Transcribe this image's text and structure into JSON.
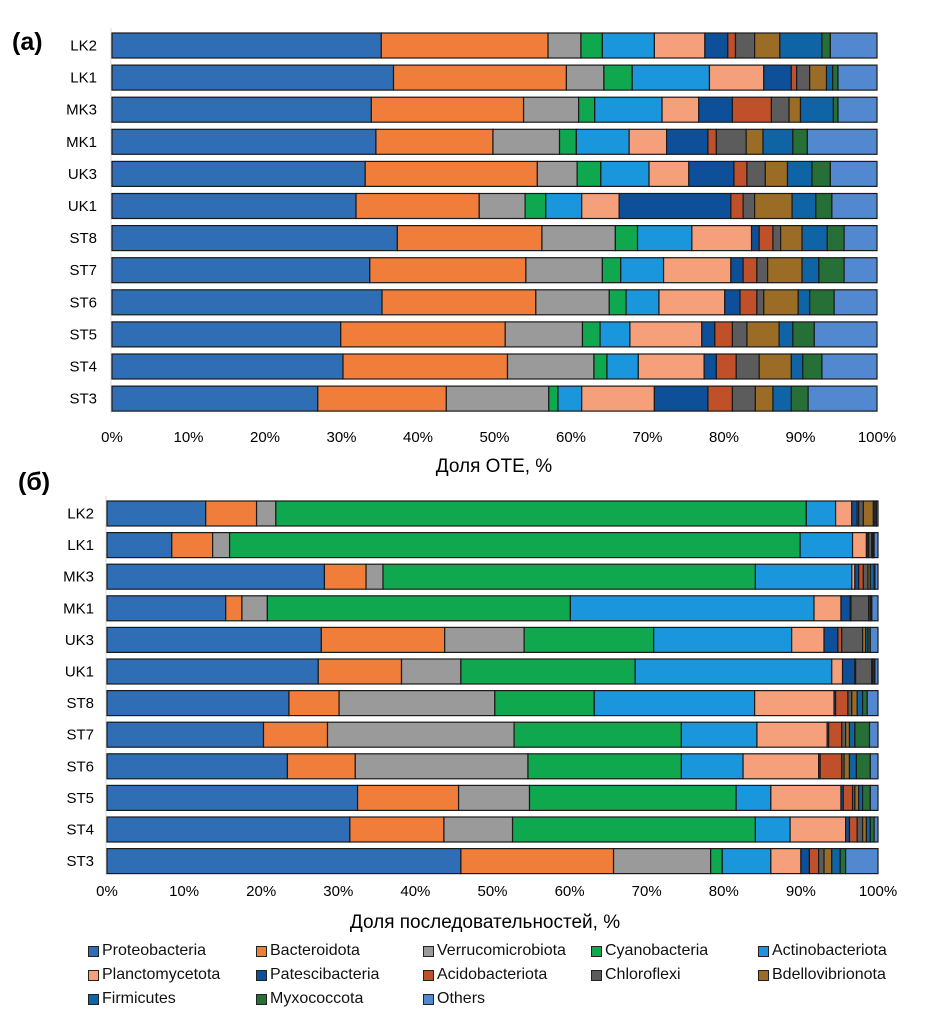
{
  "chart_data": [
    {
      "id": "a",
      "type": "bar",
      "orientation": "horizontal",
      "stacked": "percent",
      "panel_label": "(a)",
      "title": "",
      "xlabel": "Доля ОТЕ, %",
      "ylabel": "",
      "xlim": [
        0,
        100
      ],
      "xticks": [
        "0%",
        "10%",
        "20%",
        "30%",
        "40%",
        "50%",
        "60%",
        "70%",
        "80%",
        "90%",
        "100%"
      ],
      "categories": [
        "LK2",
        "LK1",
        "MK3",
        "MK1",
        "UK3",
        "UK1",
        "ST8",
        "ST7",
        "ST6",
        "ST5",
        "ST4",
        "ST3"
      ],
      "cumulative": [
        [
          35.2,
          57.0,
          61.3,
          64.1,
          70.9,
          77.5,
          80.5,
          81.5,
          84.0,
          87.3,
          92.8,
          93.9,
          100
        ],
        [
          36.8,
          59.4,
          64.3,
          68.0,
          78.1,
          85.2,
          88.8,
          89.5,
          91.2,
          93.4,
          94.2,
          94.9,
          100
        ],
        [
          33.9,
          53.8,
          61.0,
          63.1,
          71.9,
          76.7,
          81.1,
          86.2,
          88.5,
          90.0,
          94.3,
          94.9,
          100
        ],
        [
          34.5,
          49.8,
          58.5,
          60.7,
          67.6,
          72.5,
          77.9,
          79.0,
          82.9,
          85.1,
          89.0,
          90.9,
          100
        ],
        [
          33.1,
          55.6,
          60.8,
          63.9,
          70.2,
          75.4,
          81.3,
          83.0,
          85.4,
          88.3,
          91.5,
          93.9,
          100
        ],
        [
          31.9,
          48.0,
          54.0,
          56.7,
          61.4,
          66.3,
          80.9,
          82.5,
          84.0,
          88.9,
          92.0,
          94.1,
          100
        ],
        [
          37.3,
          56.2,
          65.8,
          68.7,
          75.8,
          83.6,
          84.6,
          86.4,
          87.4,
          90.2,
          93.5,
          95.7,
          100
        ],
        [
          33.7,
          54.1,
          64.1,
          66.5,
          72.1,
          80.9,
          82.5,
          84.3,
          85.7,
          90.2,
          92.4,
          95.7,
          100
        ],
        [
          35.3,
          55.4,
          65.0,
          67.2,
          71.5,
          80.1,
          82.1,
          84.3,
          85.2,
          89.7,
          91.2,
          94.4,
          100
        ],
        [
          29.9,
          51.4,
          61.5,
          63.8,
          67.7,
          77.1,
          78.8,
          81.1,
          83.0,
          87.2,
          89.0,
          91.8,
          100
        ],
        [
          30.2,
          51.7,
          63.0,
          64.7,
          68.8,
          77.4,
          79.0,
          81.6,
          84.6,
          88.8,
          90.3,
          92.8,
          100
        ],
        [
          26.9,
          43.7,
          57.1,
          58.3,
          61.4,
          70.9,
          77.9,
          81.1,
          84.1,
          86.4,
          88.8,
          91.0,
          100
        ]
      ],
      "grid": false
    },
    {
      "id": "b",
      "type": "bar",
      "orientation": "horizontal",
      "stacked": "percent",
      "panel_label": "(б)",
      "title": "",
      "xlabel": "Доля последовательностей, %",
      "ylabel": "",
      "xlim": [
        0,
        100
      ],
      "xticks": [
        "0%",
        "10%",
        "20%",
        "30%",
        "40%",
        "50%",
        "60%",
        "70%",
        "80%",
        "90%",
        "100%"
      ],
      "categories": [
        "LK2",
        "LK1",
        "MK3",
        "MK1",
        "UK3",
        "UK1",
        "ST8",
        "ST7",
        "ST6",
        "ST5",
        "ST4",
        "ST3"
      ],
      "cumulative": [
        [
          12.8,
          19.4,
          21.9,
          90.7,
          94.5,
          96.6,
          97.3,
          97.5,
          98.1,
          99.4,
          99.6,
          99.8,
          100
        ],
        [
          8.4,
          13.7,
          15.9,
          89.9,
          96.7,
          98.5,
          98.7,
          98.8,
          99.2,
          99.3,
          99.4,
          99.5,
          100
        ],
        [
          28.2,
          33.6,
          35.8,
          84.1,
          96.6,
          97.0,
          97.5,
          98.1,
          98.7,
          99.0,
          99.5,
          99.6,
          100
        ],
        [
          15.4,
          17.5,
          20.8,
          60.1,
          91.7,
          95.2,
          96.4,
          96.5,
          98.8,
          99.0,
          99.1,
          99.2,
          100
        ],
        [
          27.8,
          43.8,
          54.1,
          70.9,
          88.8,
          93.0,
          94.8,
          95.3,
          98.0,
          98.4,
          98.7,
          99.0,
          100
        ],
        [
          27.4,
          38.2,
          45.9,
          68.5,
          94.0,
          95.4,
          97.0,
          97.1,
          99.2,
          99.3,
          99.5,
          99.6,
          100
        ],
        [
          23.6,
          30.1,
          50.3,
          63.2,
          84.0,
          94.3,
          94.5,
          96.1,
          96.6,
          97.3,
          98.0,
          98.6,
          100
        ],
        [
          20.3,
          28.6,
          52.8,
          74.5,
          84.3,
          93.4,
          93.6,
          95.3,
          95.8,
          96.3,
          97.0,
          98.9,
          100
        ],
        [
          23.4,
          32.2,
          54.6,
          74.5,
          82.5,
          92.3,
          92.5,
          95.3,
          95.6,
          96.3,
          97.2,
          99.0,
          100
        ],
        [
          32.5,
          45.6,
          54.8,
          81.6,
          86.1,
          95.2,
          95.5,
          96.7,
          97.0,
          97.5,
          98.0,
          99.0,
          100
        ],
        [
          31.5,
          43.7,
          52.6,
          84.1,
          88.6,
          95.8,
          96.3,
          97.3,
          98.0,
          98.5,
          99.0,
          99.5,
          100
        ],
        [
          45.9,
          65.7,
          78.3,
          79.8,
          86.1,
          90.0,
          91.1,
          92.3,
          93.0,
          94.0,
          95.1,
          95.8,
          100
        ]
      ],
      "grid": false
    }
  ],
  "legend": {
    "placement": "bottom",
    "entries": [
      {
        "name": "Proteobacteria",
        "color": "#2f6db5"
      },
      {
        "name": "Bacteroidota",
        "color": "#f07d3a"
      },
      {
        "name": "Verrucomicrobiota",
        "color": "#9a9a9a"
      },
      {
        "name": "Cyanobacteria",
        "color": "#0fa84e"
      },
      {
        "name": "Actinobacteriota",
        "color": "#1a96dc"
      },
      {
        "name": "Planctomycetota",
        "color": "#f5a07a"
      },
      {
        "name": "Patescibacteria",
        "color": "#0d4f98"
      },
      {
        "name": "Acidobacteriota",
        "color": "#c0502a"
      },
      {
        "name": "Chloroflexi",
        "color": "#5c5c5c"
      },
      {
        "name": "Bdellovibrionota",
        "color": "#9a6c25"
      },
      {
        "name": "Firmicutes",
        "color": "#0f64a6"
      },
      {
        "name": "Myxococcota",
        "color": "#266f36"
      },
      {
        "name": "Others",
        "color": "#5288cf"
      }
    ]
  }
}
